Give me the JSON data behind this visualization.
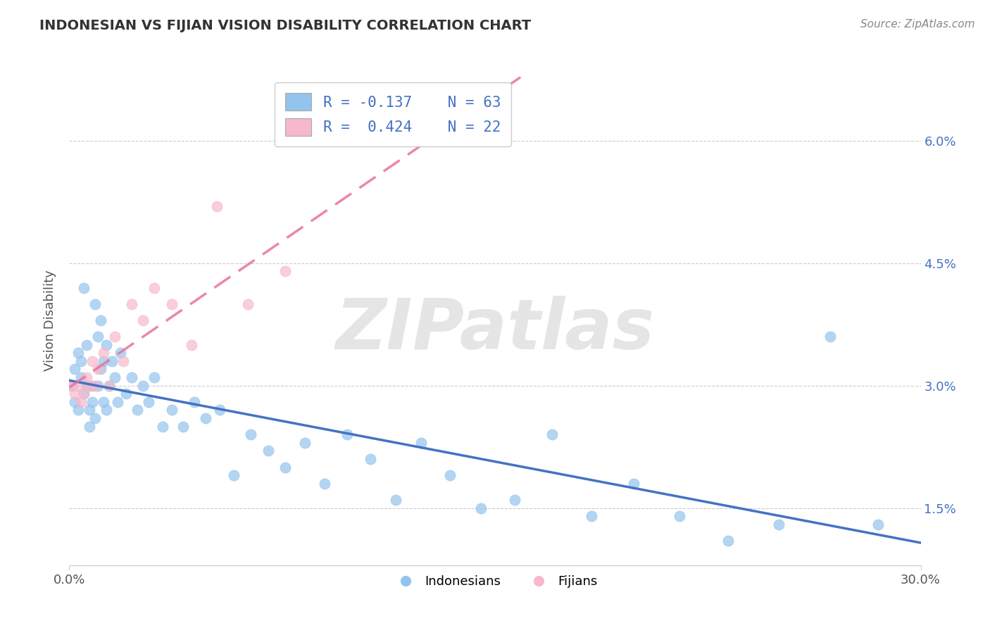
{
  "title": "INDONESIAN VS FIJIAN VISION DISABILITY CORRELATION CHART",
  "source": "Source: ZipAtlas.com",
  "ylabel": "Vision Disability",
  "xlim": [
    0.0,
    0.3
  ],
  "ylim": [
    0.008,
    0.068
  ],
  "yticks": [
    0.015,
    0.03,
    0.045,
    0.06
  ],
  "ytick_labels": [
    "1.5%",
    "3.0%",
    "4.5%",
    "6.0%"
  ],
  "watermark": "ZIPatlas",
  "indonesian_color": "#93C4ED",
  "fijian_color": "#F7B8CB",
  "indonesian_line_color": "#4472C4",
  "fijian_line_color": "#E8729A",
  "r_indonesian": -0.137,
  "n_indonesian": 63,
  "r_fijian": 0.424,
  "n_fijian": 22,
  "indonesian_x": [
    0.001,
    0.002,
    0.002,
    0.003,
    0.003,
    0.004,
    0.004,
    0.005,
    0.005,
    0.006,
    0.006,
    0.007,
    0.007,
    0.008,
    0.008,
    0.009,
    0.009,
    0.01,
    0.01,
    0.011,
    0.011,
    0.012,
    0.012,
    0.013,
    0.013,
    0.014,
    0.015,
    0.016,
    0.017,
    0.018,
    0.02,
    0.022,
    0.024,
    0.026,
    0.028,
    0.03,
    0.033,
    0.036,
    0.04,
    0.044,
    0.048,
    0.053,
    0.058,
    0.064,
    0.07,
    0.076,
    0.083,
    0.09,
    0.098,
    0.106,
    0.115,
    0.124,
    0.134,
    0.145,
    0.157,
    0.17,
    0.184,
    0.199,
    0.215,
    0.232,
    0.25,
    0.268,
    0.285
  ],
  "indonesian_y": [
    0.03,
    0.028,
    0.032,
    0.027,
    0.034,
    0.033,
    0.031,
    0.042,
    0.029,
    0.03,
    0.035,
    0.025,
    0.027,
    0.03,
    0.028,
    0.026,
    0.04,
    0.036,
    0.03,
    0.038,
    0.032,
    0.033,
    0.028,
    0.027,
    0.035,
    0.03,
    0.033,
    0.031,
    0.028,
    0.034,
    0.029,
    0.031,
    0.027,
    0.03,
    0.028,
    0.031,
    0.025,
    0.027,
    0.025,
    0.028,
    0.026,
    0.027,
    0.019,
    0.024,
    0.022,
    0.02,
    0.023,
    0.018,
    0.024,
    0.021,
    0.016,
    0.023,
    0.019,
    0.015,
    0.016,
    0.024,
    0.014,
    0.018,
    0.014,
    0.011,
    0.013,
    0.036,
    0.013
  ],
  "fijian_x": [
    0.001,
    0.002,
    0.003,
    0.004,
    0.005,
    0.006,
    0.007,
    0.008,
    0.009,
    0.01,
    0.012,
    0.014,
    0.016,
    0.019,
    0.022,
    0.026,
    0.03,
    0.036,
    0.043,
    0.052,
    0.063,
    0.076
  ],
  "fijian_y": [
    0.03,
    0.029,
    0.03,
    0.028,
    0.029,
    0.031,
    0.03,
    0.033,
    0.03,
    0.032,
    0.034,
    0.03,
    0.036,
    0.033,
    0.04,
    0.038,
    0.042,
    0.04,
    0.035,
    0.052,
    0.04,
    0.044
  ]
}
